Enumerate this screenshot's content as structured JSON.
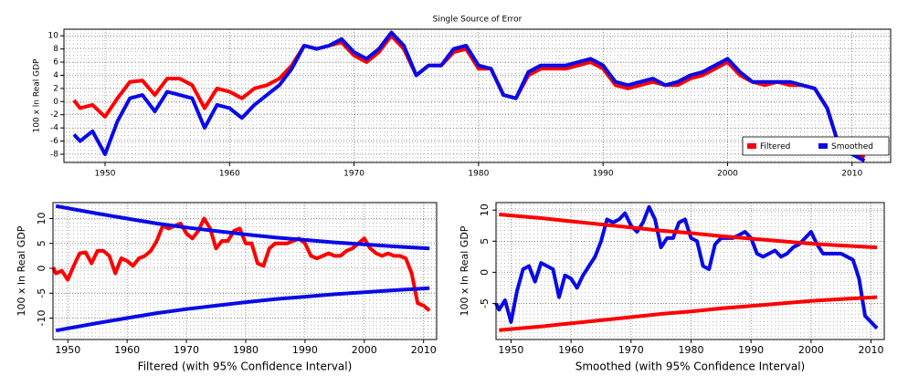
{
  "chart_data": [
    {
      "type": "line",
      "title": "Single Source of Error",
      "y_label": "100 x ln Real GDP",
      "x": [
        1947.5,
        1948,
        1949,
        1950,
        1951,
        1952,
        1953,
        1954,
        1955,
        1956,
        1957,
        1958,
        1959,
        1960,
        1961,
        1962,
        1963,
        1964,
        1965,
        1966,
        1967,
        1968,
        1969,
        1970,
        1971,
        1972,
        1973,
        1974,
        1975,
        1976,
        1977,
        1978,
        1979,
        1980,
        1981,
        1982,
        1983,
        1984,
        1985,
        1986,
        1987,
        1988,
        1989,
        1990,
        1991,
        1992,
        1993,
        1994,
        1995,
        1996,
        1997,
        1998,
        1999,
        2000,
        2001,
        2002,
        2003,
        2004,
        2005,
        2006,
        2007,
        2008,
        2009,
        2010,
        2011
      ],
      "series": [
        {
          "name": "Filtered",
          "color": "#ff0000",
          "values": [
            0.2,
            -1,
            -0.5,
            -2.3,
            0.5,
            3,
            3.2,
            1,
            3.5,
            3.5,
            2.5,
            -1,
            2,
            1.5,
            0.5,
            2,
            2.5,
            3.5,
            5.5,
            8.5,
            8,
            8.5,
            9,
            7,
            6,
            7.5,
            10,
            8,
            4,
            5.5,
            5.5,
            7.5,
            8,
            5,
            5,
            1,
            0.5,
            4,
            5,
            5,
            5,
            5.5,
            6,
            5,
            2.5,
            2,
            2.5,
            3,
            2.5,
            2.5,
            3.5,
            4,
            5,
            6,
            4,
            3,
            2.5,
            3,
            2.5,
            2.5,
            2,
            -1,
            -7,
            -7.5,
            -8.5
          ]
        },
        {
          "name": "Smoothed",
          "color": "#0a0ae6",
          "values": [
            -5,
            -6,
            -4.5,
            -8,
            -3,
            0.5,
            1,
            -1.5,
            1.5,
            1,
            0.5,
            -4,
            -0.5,
            -1,
            -2.5,
            -0.5,
            1,
            2.5,
            5,
            8.5,
            8,
            8.5,
            9.5,
            7.5,
            6.5,
            8,
            10.5,
            8.5,
            4,
            5.5,
            5.5,
            8,
            8.5,
            5.5,
            5,
            1,
            0.5,
            4.5,
            5.5,
            5.5,
            5.5,
            6,
            6.5,
            5.5,
            3,
            2.5,
            3,
            3.5,
            2.5,
            3,
            4,
            4.5,
            5.5,
            6.5,
            4.5,
            3,
            3,
            3,
            3,
            2.5,
            2,
            -1,
            -7,
            -8,
            -9
          ]
        }
      ],
      "xlim": [
        1946.7,
        2013.1
      ],
      "ylim": [
        -9.25,
        11
      ],
      "xticks": [
        1950,
        1960,
        1970,
        1980,
        1990,
        2000,
        2010
      ],
      "yticks": [
        -8,
        -6,
        -4,
        -2,
        0,
        2,
        4,
        6,
        8,
        10
      ],
      "grid": true,
      "legend": "lower right"
    },
    {
      "type": "line",
      "x_label": "Filtered (with 95% Confidence Interval)",
      "y_label": "100 x ln Real GDP",
      "x": [
        1947.5,
        1948,
        1949,
        1950,
        1951,
        1952,
        1953,
        1954,
        1955,
        1956,
        1957,
        1958,
        1959,
        1960,
        1961,
        1962,
        1963,
        1964,
        1965,
        1966,
        1967,
        1968,
        1969,
        1970,
        1971,
        1972,
        1973,
        1974,
        1975,
        1976,
        1977,
        1978,
        1979,
        1980,
        1981,
        1982,
        1983,
        1984,
        1985,
        1986,
        1987,
        1988,
        1989,
        1990,
        1991,
        1992,
        1993,
        1994,
        1995,
        1996,
        1997,
        1998,
        1999,
        2000,
        2001,
        2002,
        2003,
        2004,
        2005,
        2006,
        2007,
        2008,
        2009,
        2010,
        2011
      ],
      "series": [
        {
          "color": "#ff0000",
          "values": [
            0.2,
            -1,
            -0.5,
            -2.3,
            0.5,
            3,
            3.2,
            1,
            3.5,
            3.5,
            2.5,
            -1,
            2,
            1.5,
            0.5,
            2,
            2.5,
            3.5,
            5.5,
            8.5,
            8,
            8.5,
            9,
            7,
            6,
            7.5,
            10,
            8,
            4,
            5.5,
            5.5,
            7.5,
            8,
            5,
            5,
            1,
            0.5,
            4,
            5,
            5,
            5,
            5.5,
            6,
            5,
            2.5,
            2,
            2.5,
            3,
            2.5,
            2.5,
            3.5,
            4,
            5,
            6,
            4,
            3,
            2.5,
            3,
            2.5,
            2.5,
            2,
            -1,
            -7,
            -7.5,
            -8.5
          ]
        },
        {
          "color": "#0a0ae6",
          "x": [
            1948,
            1955,
            1960,
            1965,
            1970,
            1975,
            1980,
            1985,
            1990,
            1995,
            2000,
            2005,
            2011
          ],
          "values": [
            12.5,
            11,
            10,
            9,
            8.2,
            7.5,
            6.8,
            6.2,
            5.7,
            5.2,
            4.8,
            4.4,
            4.0
          ]
        },
        {
          "color": "#0a0ae6",
          "x": [
            1948,
            1955,
            1960,
            1965,
            1970,
            1975,
            1980,
            1985,
            1990,
            1995,
            2000,
            2005,
            2011
          ],
          "values": [
            -12.5,
            -11,
            -10,
            -9,
            -8.2,
            -7.5,
            -6.8,
            -6.2,
            -5.7,
            -5.2,
            -4.8,
            -4.4,
            -4.0
          ]
        }
      ],
      "xlim": [
        1947.5,
        2012.2
      ],
      "ylim": [
        -14.3,
        13.2
      ],
      "xticks": [
        1950,
        1960,
        1970,
        1980,
        1990,
        2000,
        2010
      ],
      "yticks": [
        -10,
        -5,
        0,
        5,
        10
      ],
      "grid": true
    },
    {
      "type": "line",
      "x_label": "Smoothed (with 95% Confidence Interval)",
      "y_label": "100 x ln Real GDP",
      "x": [
        1947.5,
        1948,
        1949,
        1950,
        1951,
        1952,
        1953,
        1954,
        1955,
        1956,
        1957,
        1958,
        1959,
        1960,
        1961,
        1962,
        1963,
        1964,
        1965,
        1966,
        1967,
        1968,
        1969,
        1970,
        1971,
        1972,
        1973,
        1974,
        1975,
        1976,
        1977,
        1978,
        1979,
        1980,
        1981,
        1982,
        1983,
        1984,
        1985,
        1986,
        1987,
        1988,
        1989,
        1990,
        1991,
        1992,
        1993,
        1994,
        1995,
        1996,
        1997,
        1998,
        1999,
        2000,
        2001,
        2002,
        2003,
        2004,
        2005,
        2006,
        2007,
        2008,
        2009,
        2010,
        2011
      ],
      "series": [
        {
          "color": "#0a0ae6",
          "values": [
            -5,
            -6,
            -4.5,
            -8,
            -3,
            0.5,
            1,
            -1.5,
            1.5,
            1,
            0.5,
            -4,
            -0.5,
            -1,
            -2.5,
            -0.5,
            1,
            2.5,
            5,
            8.5,
            8,
            8.5,
            9.5,
            7.5,
            6.5,
            8,
            10.5,
            8.5,
            4,
            5.5,
            5.5,
            8,
            8.5,
            5.5,
            5,
            1,
            0.5,
            4.5,
            5.5,
            5.5,
            5.5,
            6,
            6.5,
            5.5,
            3,
            2.5,
            3,
            3.5,
            2.5,
            3,
            4,
            4.5,
            5.5,
            6.5,
            4.5,
            3,
            3,
            3,
            3,
            2.5,
            2,
            -1,
            -7,
            -8,
            -9
          ]
        },
        {
          "color": "#ff0000",
          "x": [
            1948,
            1955,
            1960,
            1965,
            1970,
            1975,
            1980,
            1985,
            1990,
            1995,
            2000,
            2005,
            2011
          ],
          "values": [
            9.3,
            8.7,
            8.2,
            7.7,
            7.2,
            6.7,
            6.3,
            5.8,
            5.4,
            5.0,
            4.6,
            4.3,
            4.0
          ]
        },
        {
          "color": "#ff0000",
          "x": [
            1948,
            1955,
            1960,
            1965,
            1970,
            1975,
            1980,
            1985,
            1990,
            1995,
            2000,
            2005,
            2011
          ],
          "values": [
            -9.3,
            -8.7,
            -8.2,
            -7.7,
            -7.2,
            -6.7,
            -6.3,
            -5.8,
            -5.4,
            -5.0,
            -4.6,
            -4.3,
            -4.0
          ]
        }
      ],
      "xlim": [
        1947.5,
        2012.2
      ],
      "ylim": [
        -10.8,
        11.2
      ],
      "xticks": [
        1950,
        1960,
        1970,
        1980,
        1990,
        2000,
        2010
      ],
      "yticks": [
        -5,
        0,
        5,
        10
      ],
      "grid": true
    }
  ]
}
